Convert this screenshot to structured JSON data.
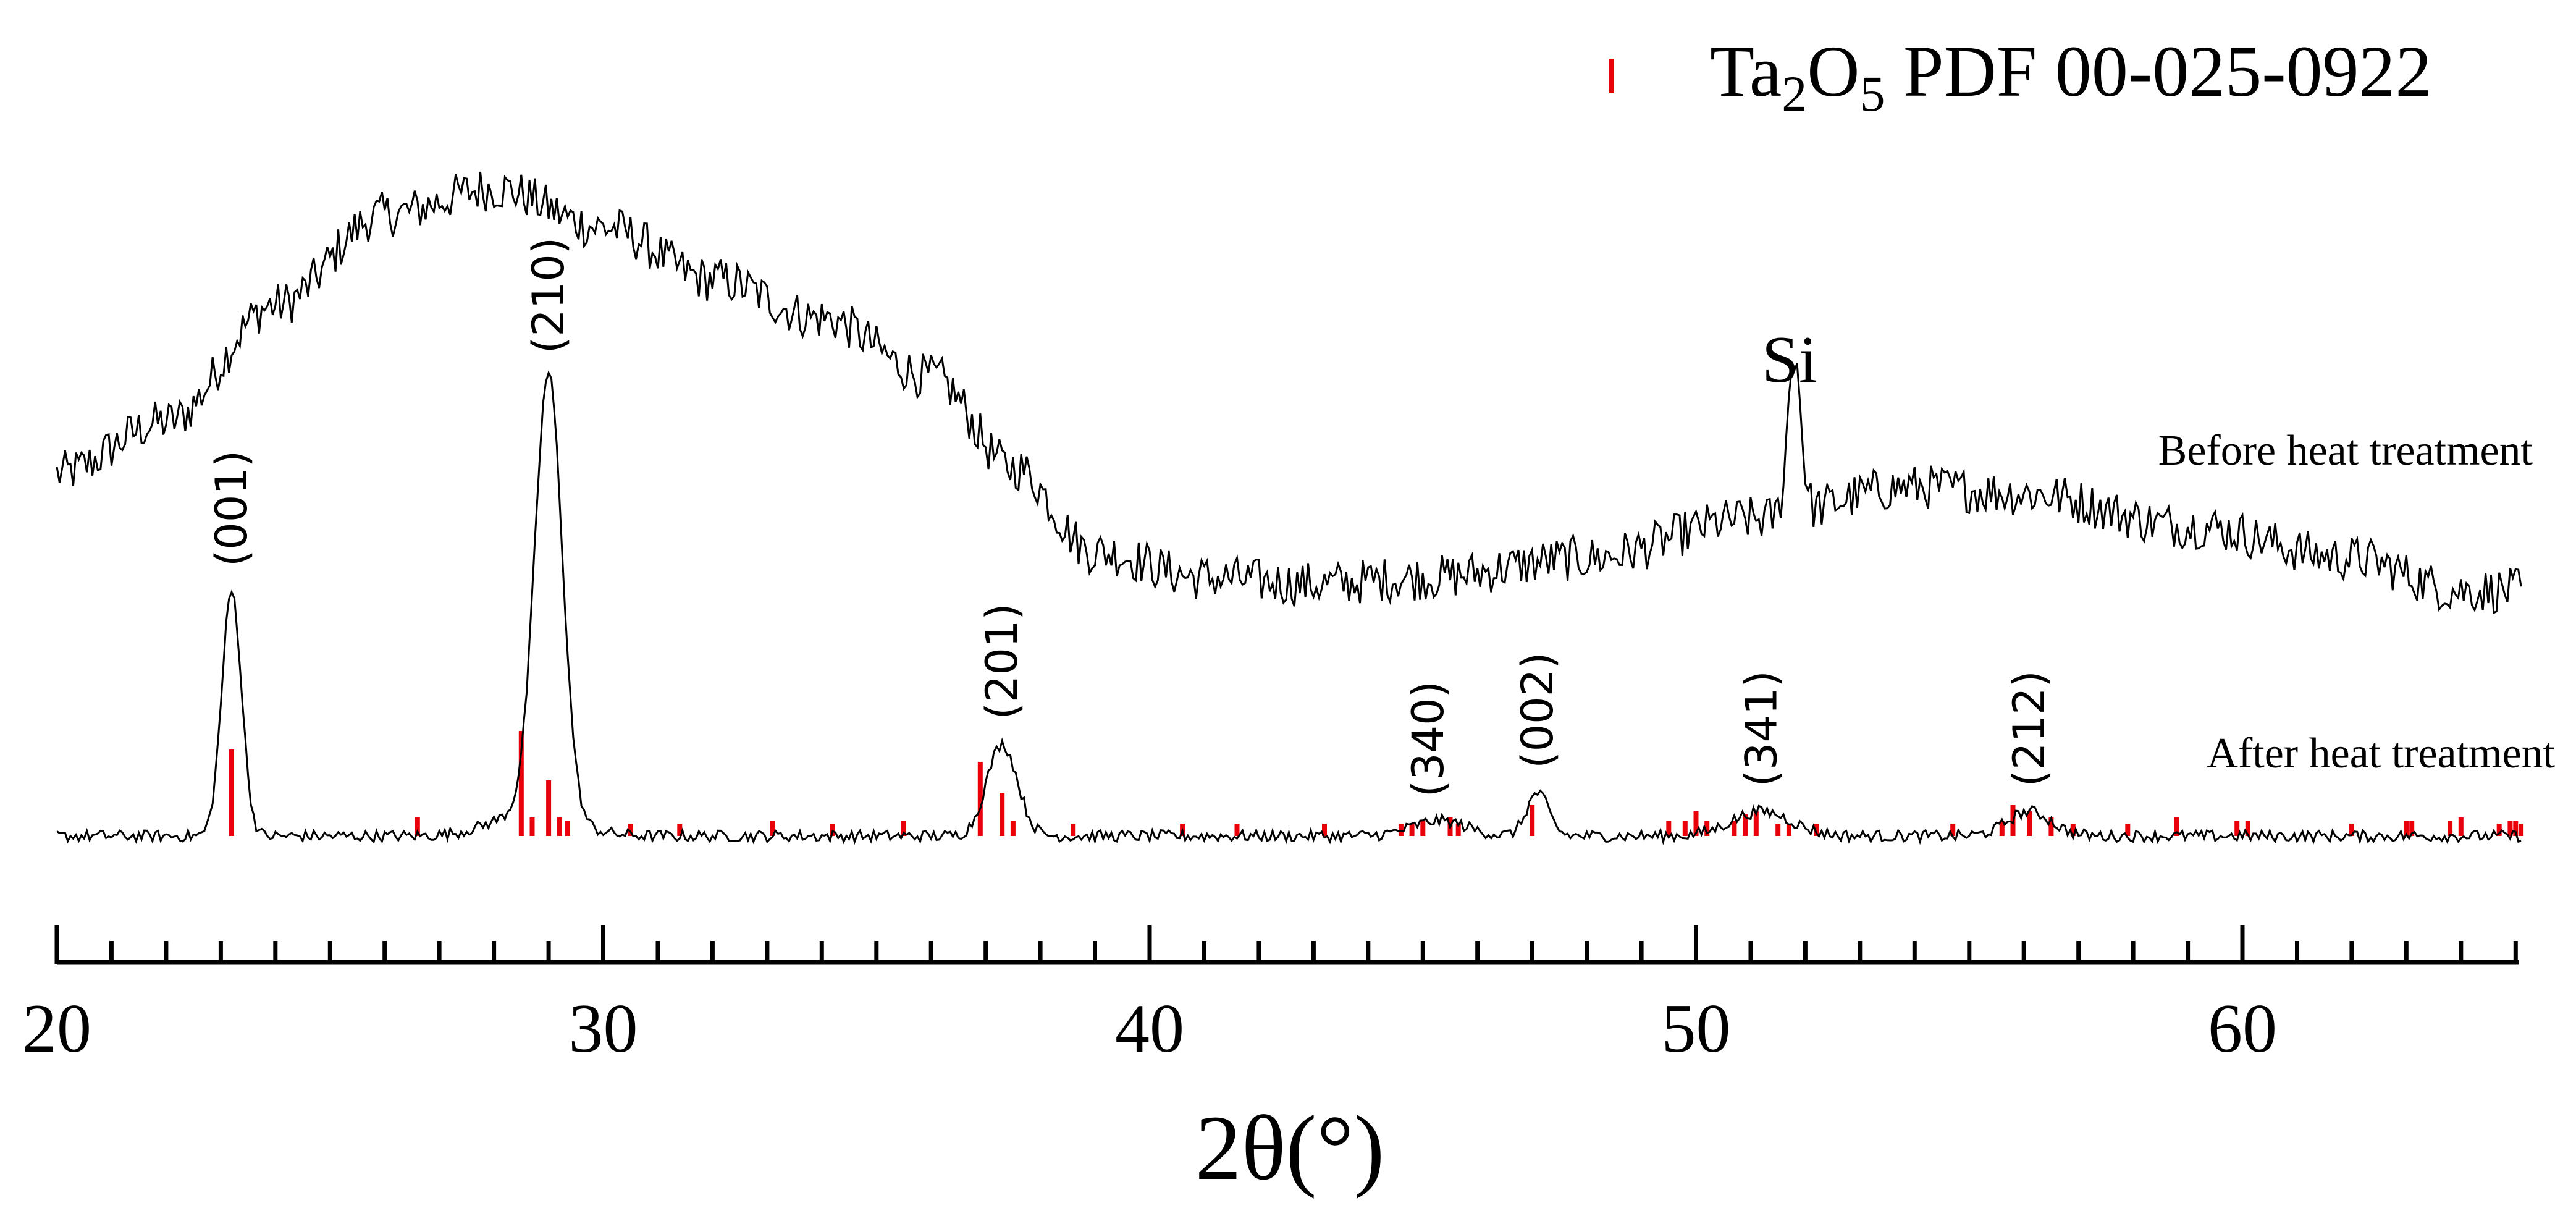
{
  "chart_data": {
    "type": "line",
    "xlabel": "2θ(°)",
    "ylabel": "",
    "xlim": [
      20,
      65.2
    ],
    "x_major_ticks": [
      20,
      30,
      40,
      50,
      60
    ],
    "x_major_tick_labels": [
      "20",
      "30",
      "40",
      "50",
      "60"
    ],
    "x_minor_tick_step": 1,
    "legend": {
      "position": "top-right",
      "entries": [
        {
          "symbol": "red-bar",
          "label_main": "Ta",
          "label_sub1": "2",
          "label_mid": "O",
          "label_sub2": "5",
          "label_rest": " PDF 00-025-0922"
        }
      ]
    },
    "series": [
      {
        "name": "Before heat treatment",
        "color": "#000000",
        "noise_amplitude": 0.022,
        "profile": [
          [
            20,
            0.26
          ],
          [
            22,
            0.34
          ],
          [
            24,
            0.52
          ],
          [
            26,
            0.66
          ],
          [
            28,
            0.7
          ],
          [
            30,
            0.64
          ],
          [
            32,
            0.56
          ],
          [
            34,
            0.5
          ],
          [
            36,
            0.41
          ],
          [
            37.5,
            0.27
          ],
          [
            39,
            0.14
          ],
          [
            41,
            0.1
          ],
          [
            43,
            0.09
          ],
          [
            45,
            0.1
          ],
          [
            48,
            0.13
          ],
          [
            51,
            0.19
          ],
          [
            54,
            0.24
          ],
          [
            56,
            0.23
          ],
          [
            59,
            0.18
          ],
          [
            62,
            0.13
          ],
          [
            64,
            0.08
          ],
          [
            65.1,
            0.08
          ]
        ],
        "peaks": [
          {
            "x": 51.8,
            "height": 0.25,
            "width": 0.12
          }
        ],
        "annotation": {
          "text": "Si",
          "x": 51.8
        }
      },
      {
        "name": "After heat treatment",
        "color": "#000000",
        "noise_amplitude": 0.006,
        "profile": [
          [
            20,
            0
          ],
          [
            65.1,
            0
          ]
        ],
        "peaks": [
          {
            "x": 23.2,
            "height": 0.4,
            "width": 0.18
          },
          {
            "x": 29.0,
            "height": 0.72,
            "width": 0.25
          },
          {
            "x": 28.7,
            "height": 0.04,
            "width": 0.7
          },
          {
            "x": 37.3,
            "height": 0.15,
            "width": 0.28
          },
          {
            "x": 45.3,
            "height": 0.025,
            "width": 0.5
          },
          {
            "x": 47.1,
            "height": 0.07,
            "width": 0.2
          },
          {
            "x": 51.2,
            "height": 0.04,
            "width": 0.55
          },
          {
            "x": 56.1,
            "height": 0.04,
            "width": 0.4
          }
        ]
      }
    ],
    "peak_labels": [
      {
        "text": "(001)",
        "x": 23.2
      },
      {
        "text": "(210)",
        "x": 29.0
      },
      {
        "text": "(201)",
        "x": 37.3
      },
      {
        "text": "(340)",
        "x": 45.1
      },
      {
        "text": "(002)",
        "x": 47.1
      },
      {
        "text": "(341)",
        "x": 51.2
      },
      {
        "text": "(212)",
        "x": 56.1
      }
    ],
    "reference_lines": {
      "name": "Ta2O5 PDF 00-025-0922",
      "color": "#e8000b",
      "lines": [
        [
          23.2,
          0.14
        ],
        [
          26.6,
          0.03
        ],
        [
          28.5,
          0.17
        ],
        [
          28.7,
          0.03
        ],
        [
          29.0,
          0.09
        ],
        [
          29.2,
          0.03
        ],
        [
          29.35,
          0.025
        ],
        [
          30.5,
          0.02
        ],
        [
          31.4,
          0.02
        ],
        [
          33.1,
          0.025
        ],
        [
          34.2,
          0.02
        ],
        [
          35.5,
          0.025
        ],
        [
          36.9,
          0.12
        ],
        [
          37.3,
          0.07
        ],
        [
          37.5,
          0.025
        ],
        [
          38.6,
          0.02
        ],
        [
          40.6,
          0.02
        ],
        [
          41.6,
          0.02
        ],
        [
          43.2,
          0.02
        ],
        [
          44.6,
          0.02
        ],
        [
          44.8,
          0.02
        ],
        [
          45.0,
          0.025
        ],
        [
          45.5,
          0.03
        ],
        [
          45.65,
          0.02
        ],
        [
          47.0,
          0.05
        ],
        [
          49.5,
          0.025
        ],
        [
          49.8,
          0.025
        ],
        [
          50.0,
          0.04
        ],
        [
          50.2,
          0.025
        ],
        [
          50.7,
          0.025
        ],
        [
          50.9,
          0.035
        ],
        [
          51.1,
          0.04
        ],
        [
          51.5,
          0.02
        ],
        [
          51.7,
          0.02
        ],
        [
          52.2,
          0.02
        ],
        [
          54.7,
          0.02
        ],
        [
          55.6,
          0.025
        ],
        [
          55.8,
          0.05
        ],
        [
          56.1,
          0.04
        ],
        [
          56.5,
          0.03
        ],
        [
          56.9,
          0.02
        ],
        [
          57.9,
          0.02
        ],
        [
          58.8,
          0.03
        ],
        [
          59.9,
          0.025
        ],
        [
          60.1,
          0.025
        ],
        [
          62.0,
          0.02
        ],
        [
          63.0,
          0.025
        ],
        [
          63.1,
          0.025
        ],
        [
          63.8,
          0.025
        ],
        [
          64.0,
          0.03
        ],
        [
          64.7,
          0.02
        ],
        [
          64.9,
          0.025
        ],
        [
          65.0,
          0.025
        ],
        [
          65.1,
          0.02
        ]
      ]
    }
  }
}
